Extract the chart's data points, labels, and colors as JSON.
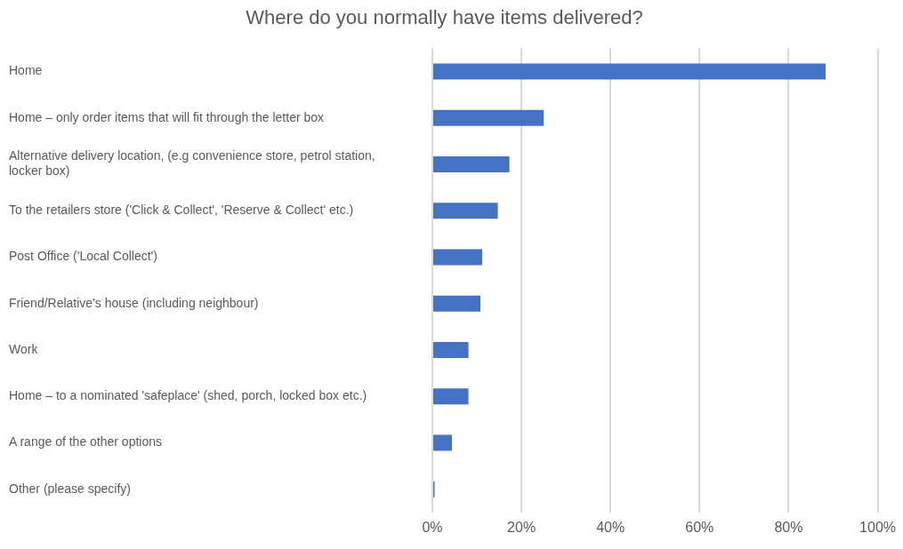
{
  "chart_data": {
    "type": "bar",
    "orientation": "horizontal",
    "title": "Where do you normally have items delivered?",
    "categories": [
      "Home",
      "Home – only order items that will fit through the letter box",
      "Alternative delivery location, (e.g convenience store, petrol station, locker box)",
      "To the retailers store ('Click & Collect', 'Reserve & Collect' etc.)",
      "Post Office ('Local Collect')",
      "Friend/Relative's house (including neighbour)",
      "Work",
      "Home – to a nominated 'safeplace' (shed, porch, locked box etc.)",
      "A range of the other options",
      "Other (please specify)"
    ],
    "values": [
      88.3,
      25.0,
      17.3,
      14.7,
      11.2,
      10.8,
      8.1,
      8.1,
      4.4,
      0.5
    ],
    "color": "#4472c4",
    "xlim": [
      0,
      100
    ],
    "xticks": [
      {
        "value": 0,
        "label": "0%"
      },
      {
        "value": 20,
        "label": "20%"
      },
      {
        "value": 40,
        "label": "40%"
      },
      {
        "value": 60,
        "label": "60%"
      },
      {
        "value": 80,
        "label": "80%"
      },
      {
        "value": 100,
        "label": "100%"
      }
    ],
    "grid": "x",
    "legend": false
  }
}
